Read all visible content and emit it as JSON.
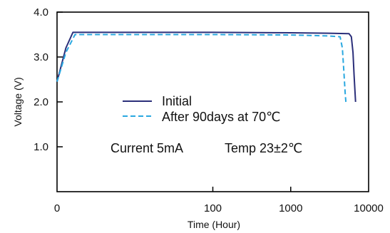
{
  "chart_data": {
    "type": "line",
    "title": "",
    "xlabel": "Time (Hour)",
    "ylabel": "Voltage (V)",
    "x_scale": "log",
    "xlim": [
      1,
      10000
    ],
    "ylim": [
      0,
      4.0
    ],
    "x_ticks": [
      {
        "value": 1,
        "label": "0"
      },
      {
        "value": 100,
        "label": "100"
      },
      {
        "value": 1000,
        "label": "1000"
      },
      {
        "value": 10000,
        "label": "10000"
      }
    ],
    "y_ticks": [
      {
        "value": 1.0,
        "label": "1.0"
      },
      {
        "value": 2.0,
        "label": "2.0"
      },
      {
        "value": 3.0,
        "label": "3.0"
      },
      {
        "value": 4.0,
        "label": "4.0"
      }
    ],
    "grid": false,
    "legend_position": "center",
    "series": [
      {
        "name": "Initial",
        "color": "#2b2f7a",
        "style": "solid",
        "x": [
          1,
          1.3,
          1.6,
          3,
          100,
          1000,
          3000,
          5600,
          6000,
          6300,
          6500,
          6700,
          6800
        ],
        "y": [
          2.45,
          3.2,
          3.55,
          3.55,
          3.55,
          3.54,
          3.53,
          3.52,
          3.45,
          3.1,
          2.6,
          2.2,
          2.0
        ]
      },
      {
        "name": "After 90days at 70℃",
        "color": "#2aa8e0",
        "style": "dashed",
        "x": [
          1,
          1.3,
          1.7,
          3,
          100,
          1000,
          3000,
          4300,
          4600,
          4800,
          5000,
          5100
        ],
        "y": [
          2.45,
          3.1,
          3.5,
          3.5,
          3.5,
          3.49,
          3.47,
          3.45,
          3.2,
          2.7,
          2.2,
          2.0
        ]
      }
    ],
    "annotations": [
      "Current 5mA",
      "Temp 23±2℃"
    ]
  }
}
